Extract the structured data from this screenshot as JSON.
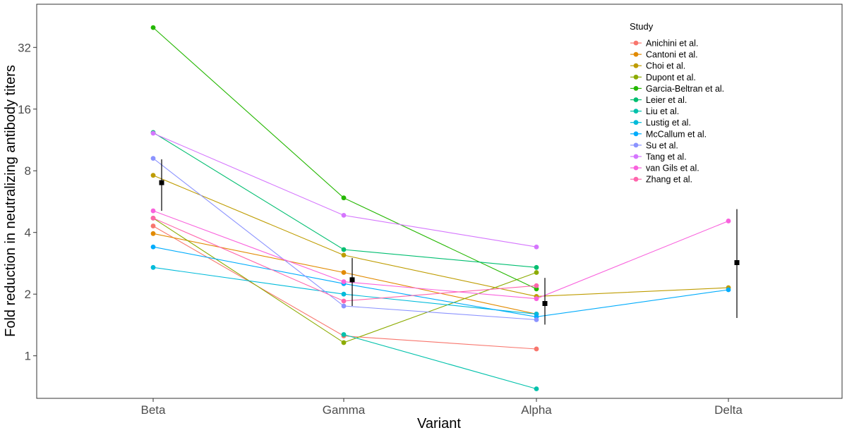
{
  "chart_data": {
    "type": "line",
    "title": "",
    "xlabel": "Variant",
    "ylabel": "Fold reduction in neutralizing antibody titers",
    "y_scale": "log2",
    "ylim": [
      0.62,
      52
    ],
    "y_ticks": [
      1,
      2,
      4,
      8,
      16,
      32
    ],
    "categories": [
      "Beta",
      "Gamma",
      "Alpha",
      "Delta"
    ],
    "legend_title": "Study",
    "legend_position": "top-right",
    "series": [
      {
        "name": "Anichini et al.",
        "color": "#F8766D",
        "values": [
          4.3,
          1.25,
          1.08,
          null
        ]
      },
      {
        "name": "Cantoni et al.",
        "color": "#E18A00",
        "values": [
          3.95,
          2.55,
          1.6,
          null
        ]
      },
      {
        "name": "Choi et al.",
        "color": "#BE9C00",
        "values": [
          7.6,
          3.1,
          1.95,
          2.15
        ]
      },
      {
        "name": "Dupont et al.",
        "color": "#8CAB00",
        "values": [
          4.7,
          1.16,
          2.55,
          null
        ]
      },
      {
        "name": "Garcia-Beltran et al.",
        "color": "#24B700",
        "values": [
          40,
          5.9,
          2.12,
          null
        ]
      },
      {
        "name": "Leier et al.",
        "color": "#00BE70",
        "values": [
          12.3,
          3.3,
          2.7,
          null
        ]
      },
      {
        "name": "Liu et al.",
        "color": "#00C1AB",
        "values": [
          null,
          1.27,
          0.69,
          null
        ]
      },
      {
        "name": "Lustig et al.",
        "color": "#00BBDA",
        "values": [
          2.7,
          2.0,
          1.6,
          null
        ]
      },
      {
        "name": "McCallum et al.",
        "color": "#00ACFC",
        "values": [
          3.4,
          2.25,
          1.55,
          2.1
        ]
      },
      {
        "name": "Su et al.",
        "color": "#8B93FF",
        "values": [
          9.2,
          1.75,
          1.5,
          null
        ]
      },
      {
        "name": "Tang et al.",
        "color": "#D575FE",
        "values": [
          12.2,
          4.85,
          3.4,
          null
        ]
      },
      {
        "name": "van Gils et al.",
        "color": "#F962DD",
        "values": [
          5.1,
          2.3,
          1.9,
          4.55
        ]
      },
      {
        "name": "Zhang et al.",
        "color": "#FF65AC",
        "values": [
          4.7,
          1.85,
          2.2,
          null
        ]
      }
    ],
    "summary": [
      {
        "category": "Beta",
        "mean": 7.0,
        "lower": 5.1,
        "upper": 9.1
      },
      {
        "category": "Gamma",
        "mean": 2.35,
        "lower": 1.75,
        "upper": 3.0
      },
      {
        "category": "Alpha",
        "mean": 1.8,
        "lower": 1.42,
        "upper": 2.4
      },
      {
        "category": "Delta",
        "mean": 2.85,
        "lower": 1.53,
        "upper": 5.2
      }
    ]
  }
}
